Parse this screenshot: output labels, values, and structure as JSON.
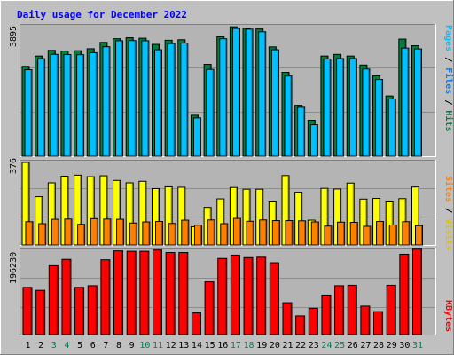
{
  "chart_data": {
    "type": "bar",
    "title": "Daily usage for December 2022",
    "categories": [
      "1",
      "2",
      "3",
      "4",
      "5",
      "6",
      "7",
      "8",
      "9",
      "10",
      "11",
      "12",
      "13",
      "14",
      "15",
      "16",
      "17",
      "18",
      "19",
      "20",
      "21",
      "22",
      "23",
      "24",
      "25",
      "26",
      "27",
      "28",
      "29",
      "30",
      "31"
    ],
    "weekend_days": [
      "3",
      "4",
      "10",
      "11",
      "17",
      "18",
      "24",
      "25",
      "31"
    ],
    "panels": [
      {
        "id": "hits_files_pages",
        "ymax_label": "3895",
        "ymax": 3895,
        "legend": [
          "Pages",
          "/",
          "Files",
          "/",
          "Hits"
        ],
        "series": [
          {
            "name": "Hits",
            "color": "#008040",
            "values": [
              2700,
              3010,
              3180,
              3160,
              3170,
              3230,
              3420,
              3530,
              3560,
              3545,
              3360,
              3485,
              3500,
              1230,
              2760,
              3590,
              3890,
              3845,
              3825,
              3285,
              2520,
              1530,
              1080,
              3010,
              3060,
              3010,
              2740,
              2420,
              1810,
              3520,
              3320
            ]
          },
          {
            "name": "Files",
            "color": "#00C0FF",
            "values": [
              2600,
              2930,
              3060,
              3055,
              3050,
              3110,
              3290,
              3470,
              3475,
              3470,
              3200,
              3385,
              3400,
              1150,
              2610,
              3530,
              3840,
              3820,
              3740,
              3200,
              2410,
              1470,
              945,
              2920,
              2935,
              2935,
              2620,
              2305,
              1720,
              3250,
              3225
            ]
          },
          {
            "name": "Pages",
            "color": "#00C0FF",
            "values": []
          }
        ]
      },
      {
        "id": "visits_sites",
        "ymax_label": "376",
        "ymax": 376,
        "legend": [
          "Sites",
          "/",
          "Visits"
        ],
        "series": [
          {
            "name": "Visits",
            "color": "#FFFF00",
            "values": [
              376,
              220,
              283,
              313,
              318,
              311,
              315,
              294,
              283,
              290,
              257,
              265,
              263,
              83,
              171,
              210,
              262,
              254,
              254,
              196,
              316,
              240,
              113,
              258,
              255,
              282,
              209,
              212,
              196,
              211,
              264
            ]
          },
          {
            "name": "Sites",
            "color": "#FF8000",
            "values": [
              106,
              97,
              117,
              118,
              94,
              120,
              118,
              117,
              100,
              105,
              107,
              98,
              113,
              90,
              114,
              97,
              121,
              108,
              114,
              111,
              111,
              110,
              105,
              86,
              104,
              103,
              85,
              107,
              91,
              106,
              88
            ]
          }
        ]
      },
      {
        "id": "kbytes",
        "ymax_label": "196230",
        "ymax": 196230,
        "legend": [
          "KBytes"
        ],
        "series": [
          {
            "name": "KBytes",
            "color": "#FF0000",
            "values": [
              111000,
              104000,
              162000,
              177000,
              111000,
              115000,
              176000,
              197000,
              196000,
              196000,
              199000,
              193000,
              193000,
              51000,
              124000,
              179000,
              187000,
              181000,
              182000,
              169000,
              75000,
              44000,
              62000,
              93000,
              115000,
              116000,
              67000,
              54000,
              116000,
              189000,
              201000
            ]
          }
        ]
      }
    ]
  }
}
